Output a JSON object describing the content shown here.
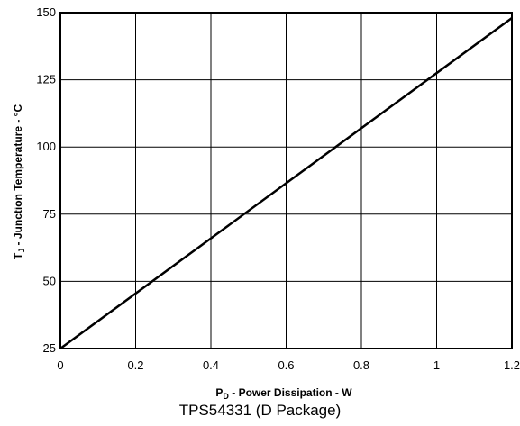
{
  "chart_data": {
    "type": "line",
    "caption": "TPS54331 (D Package)",
    "xlabel": {
      "prefix": "P",
      "subscript": "D",
      "suffix": " -  Power Dissipation - W"
    },
    "ylabel": {
      "prefix": "T",
      "subscript": "J",
      "suffix": " - Junction Temperature - °C"
    },
    "xlim": [
      0,
      1.2
    ],
    "ylim": [
      25,
      150
    ],
    "x_ticks": [
      0,
      0.2,
      0.4,
      0.6,
      0.8,
      1,
      1.2
    ],
    "x_tick_labels": [
      "0",
      "0.2",
      "0.4",
      "0.6",
      "0.8",
      "1",
      "1.2"
    ],
    "y_ticks": [
      25,
      50,
      75,
      100,
      125,
      150
    ],
    "y_tick_labels": [
      "25",
      "50",
      "75",
      "100",
      "125",
      "150"
    ],
    "grid": true,
    "series": [
      {
        "x": [
          0,
          1.2
        ],
        "y": [
          25,
          148
        ],
        "color": "#000000"
      }
    ]
  }
}
